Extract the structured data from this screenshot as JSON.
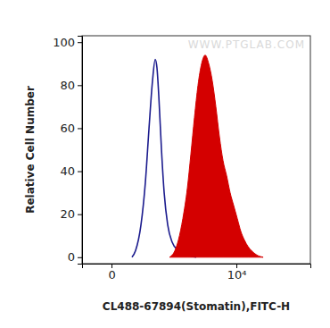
{
  "chart_data": {
    "type": "line",
    "x_label": "CL488-67894(Stomatin),FITC-H",
    "y_label": "Relative Cell Number",
    "annotations": [
      "WWW.PTGLAB.COM"
    ],
    "log": "x",
    "xlim": [
      -197,
      155500
    ],
    "xticks": [
      0,
      {
        "value": 10000,
        "label": "10⁴"
      }
    ],
    "ylim": [
      -3,
      103
    ],
    "yticks": [
      0,
      20,
      40,
      60,
      80,
      100
    ],
    "grid": false,
    "series": [
      {
        "type": "line",
        "color": "#1c1c8e",
        "x": [
          113,
          143,
          197,
          250,
          300,
          355,
          403,
          437,
          474,
          534,
          600,
          698,
          841,
          1085,
          1548,
          2192
        ],
        "values": [
          0,
          3,
          15,
          35,
          60,
          82,
          92,
          88,
          75,
          50,
          30,
          15,
          7,
          3,
          1,
          0
        ]
      },
      {
        "type": "area",
        "color": "#d40000",
        "x": [
          752,
          938,
          1085,
          1297,
          1548,
          1780,
          2045,
          2346,
          2691,
          3085,
          3537,
          4047,
          4630,
          5300,
          6060,
          6925,
          7915,
          9047,
          10340,
          11810,
          13490,
          15410,
          17580,
          21450,
          27080
        ],
        "values": [
          0,
          3,
          8,
          18,
          32,
          48,
          65,
          80,
          90,
          94,
          90,
          82,
          70,
          56,
          45,
          38,
          30,
          24,
          18,
          12,
          8,
          5,
          3,
          1,
          0
        ]
      }
    ]
  }
}
